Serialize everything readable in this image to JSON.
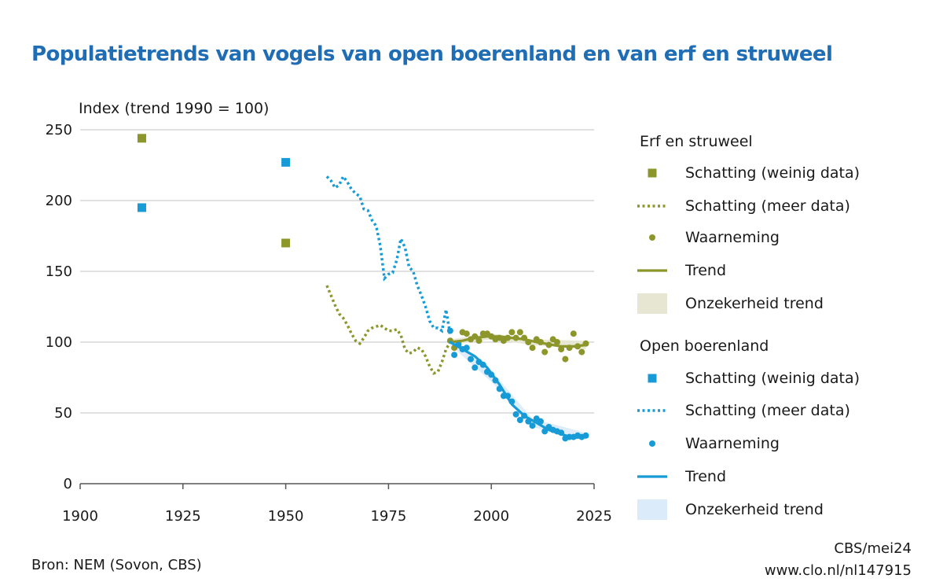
{
  "title": "Populatietrends van vogels van open boerenland en van erf en struweel",
  "source": "Bron: NEM (Sovon, CBS)",
  "credit": "CBS/mei24",
  "url": "www.clo.nl/nl147915",
  "chart_data": {
    "type": "line",
    "ylabel": "Index (trend 1990 = 100)",
    "xlabel": "",
    "xlim": [
      1900,
      2025
    ],
    "ylim": [
      0,
      250
    ],
    "xticks": [
      1900,
      1925,
      1950,
      1975,
      2000,
      2025
    ],
    "yticks": [
      0,
      50,
      100,
      150,
      200,
      250
    ],
    "grid": "horizontal",
    "legend_position": "right",
    "colors": {
      "erf": "#8c962a",
      "open": "#179bd7",
      "erf_band": "#e6e6d2",
      "open_band": "#dcebfa"
    },
    "groups": [
      {
        "name": "Erf en struweel",
        "color": "#8c962a",
        "legend": [
          "Schatting (weinig data)",
          "Schatting (meer data)",
          "Waarneming",
          "Trend",
          "Onzekerheid trend"
        ],
        "estimate_sparse": [
          [
            1915,
            244
          ],
          [
            1950,
            170
          ]
        ],
        "estimate_more": [
          [
            1960,
            140
          ],
          [
            1961,
            133
          ],
          [
            1962,
            126
          ],
          [
            1963,
            120
          ],
          [
            1964,
            117
          ],
          [
            1965,
            112
          ],
          [
            1966,
            106
          ],
          [
            1967,
            101
          ],
          [
            1968,
            99
          ],
          [
            1969,
            103
          ],
          [
            1970,
            108
          ],
          [
            1971,
            110
          ],
          [
            1972,
            111
          ],
          [
            1973,
            112
          ],
          [
            1974,
            110
          ],
          [
            1975,
            108
          ],
          [
            1976,
            108
          ],
          [
            1977,
            109
          ],
          [
            1978,
            105
          ],
          [
            1979,
            95
          ],
          [
            1980,
            92
          ],
          [
            1981,
            93
          ],
          [
            1982,
            96
          ],
          [
            1983,
            95
          ],
          [
            1984,
            90
          ],
          [
            1985,
            83
          ],
          [
            1986,
            78
          ],
          [
            1987,
            79
          ],
          [
            1988,
            86
          ],
          [
            1989,
            95
          ],
          [
            1990,
            100
          ]
        ],
        "observations": [
          [
            1990,
            101
          ],
          [
            1991,
            96
          ],
          [
            1992,
            99
          ],
          [
            1993,
            107
          ],
          [
            1994,
            106
          ],
          [
            1995,
            102
          ],
          [
            1996,
            104
          ],
          [
            1997,
            101
          ],
          [
            1998,
            106
          ],
          [
            1999,
            106
          ],
          [
            2000,
            104
          ],
          [
            2001,
            102
          ],
          [
            2002,
            103
          ],
          [
            2003,
            101
          ],
          [
            2004,
            103
          ],
          [
            2005,
            107
          ],
          [
            2006,
            103
          ],
          [
            2007,
            107
          ],
          [
            2008,
            103
          ],
          [
            2009,
            100
          ],
          [
            2010,
            96
          ],
          [
            2011,
            102
          ],
          [
            2012,
            100
          ],
          [
            2013,
            93
          ],
          [
            2014,
            98
          ],
          [
            2015,
            102
          ],
          [
            2016,
            100
          ],
          [
            2017,
            95
          ],
          [
            2018,
            88
          ],
          [
            2019,
            96
          ],
          [
            2020,
            106
          ],
          [
            2021,
            97
          ],
          [
            2022,
            93
          ],
          [
            2023,
            99
          ]
        ],
        "trend": [
          [
            1990,
            100
          ],
          [
            1993,
            101
          ],
          [
            1996,
            103
          ],
          [
            1999,
            104
          ],
          [
            2002,
            104
          ],
          [
            2005,
            103
          ],
          [
            2008,
            102
          ],
          [
            2011,
            100
          ],
          [
            2014,
            98.5
          ],
          [
            2017,
            97
          ],
          [
            2020,
            97
          ],
          [
            2023,
            98
          ]
        ],
        "trend_band": {
          "lower": [
            [
              1990,
              98
            ],
            [
              2000,
              102
            ],
            [
              2010,
              98
            ],
            [
              2023,
              95
            ]
          ],
          "upper": [
            [
              1990,
              102
            ],
            [
              2000,
              106
            ],
            [
              2010,
              102
            ],
            [
              2023,
              101
            ]
          ]
        }
      },
      {
        "name": "Open boerenland",
        "color": "#179bd7",
        "legend": [
          "Schatting (weinig data)",
          "Schatting (meer data)",
          "Waarneming",
          "Trend",
          "Onzekerheid trend"
        ],
        "estimate_sparse": [
          [
            1915,
            195
          ],
          [
            1950,
            227
          ]
        ],
        "estimate_more": [
          [
            1960,
            217
          ],
          [
            1961,
            214
          ],
          [
            1962,
            209
          ],
          [
            1963,
            211
          ],
          [
            1964,
            217
          ],
          [
            1965,
            213
          ],
          [
            1966,
            208
          ],
          [
            1967,
            205
          ],
          [
            1968,
            203
          ],
          [
            1969,
            194
          ],
          [
            1970,
            193
          ],
          [
            1971,
            186
          ],
          [
            1972,
            182
          ],
          [
            1973,
            168
          ],
          [
            1974,
            145
          ],
          [
            1975,
            148
          ],
          [
            1976,
            149
          ],
          [
            1977,
            158
          ],
          [
            1978,
            173
          ],
          [
            1979,
            167
          ],
          [
            1980,
            153
          ],
          [
            1981,
            150
          ],
          [
            1982,
            140
          ],
          [
            1983,
            133
          ],
          [
            1984,
            125
          ],
          [
            1985,
            115
          ],
          [
            1986,
            110
          ],
          [
            1987,
            110
          ],
          [
            1988,
            108
          ],
          [
            1989,
            123
          ],
          [
            1990,
            105
          ]
        ],
        "observations": [
          [
            1990,
            108
          ],
          [
            1991,
            91
          ],
          [
            1992,
            98
          ],
          [
            1993,
            95
          ],
          [
            1994,
            96
          ],
          [
            1995,
            88
          ],
          [
            1996,
            82
          ],
          [
            1997,
            86
          ],
          [
            1998,
            84
          ],
          [
            1999,
            79
          ],
          [
            2000,
            77
          ],
          [
            2001,
            73
          ],
          [
            2002,
            67
          ],
          [
            2003,
            62
          ],
          [
            2004,
            62
          ],
          [
            2005,
            58
          ],
          [
            2006,
            49
          ],
          [
            2007,
            45
          ],
          [
            2008,
            48
          ],
          [
            2009,
            44
          ],
          [
            2010,
            41
          ],
          [
            2011,
            46
          ],
          [
            2012,
            44
          ],
          [
            2013,
            37
          ],
          [
            2014,
            40
          ],
          [
            2015,
            38
          ],
          [
            2016,
            37
          ],
          [
            2017,
            36
          ],
          [
            2018,
            32
          ],
          [
            2019,
            33
          ],
          [
            2020,
            33
          ],
          [
            2021,
            34
          ],
          [
            2022,
            33
          ],
          [
            2023,
            34
          ]
        ],
        "trend": [
          [
            1990,
            100
          ],
          [
            1993,
            95
          ],
          [
            1996,
            90
          ],
          [
            1999,
            82
          ],
          [
            2002,
            70
          ],
          [
            2005,
            56
          ],
          [
            2008,
            48
          ],
          [
            2011,
            43
          ],
          [
            2014,
            38
          ],
          [
            2017,
            35
          ],
          [
            2020,
            32.5
          ],
          [
            2023,
            33
          ]
        ],
        "trend_band": {
          "lower": [
            [
              1990,
              98
            ],
            [
              2000,
              72
            ],
            [
              2010,
              40
            ],
            [
              2023,
              31
            ]
          ],
          "upper": [
            [
              1990,
              102
            ],
            [
              2000,
              80
            ],
            [
              2010,
              46
            ],
            [
              2023,
              36
            ]
          ]
        }
      }
    ]
  }
}
